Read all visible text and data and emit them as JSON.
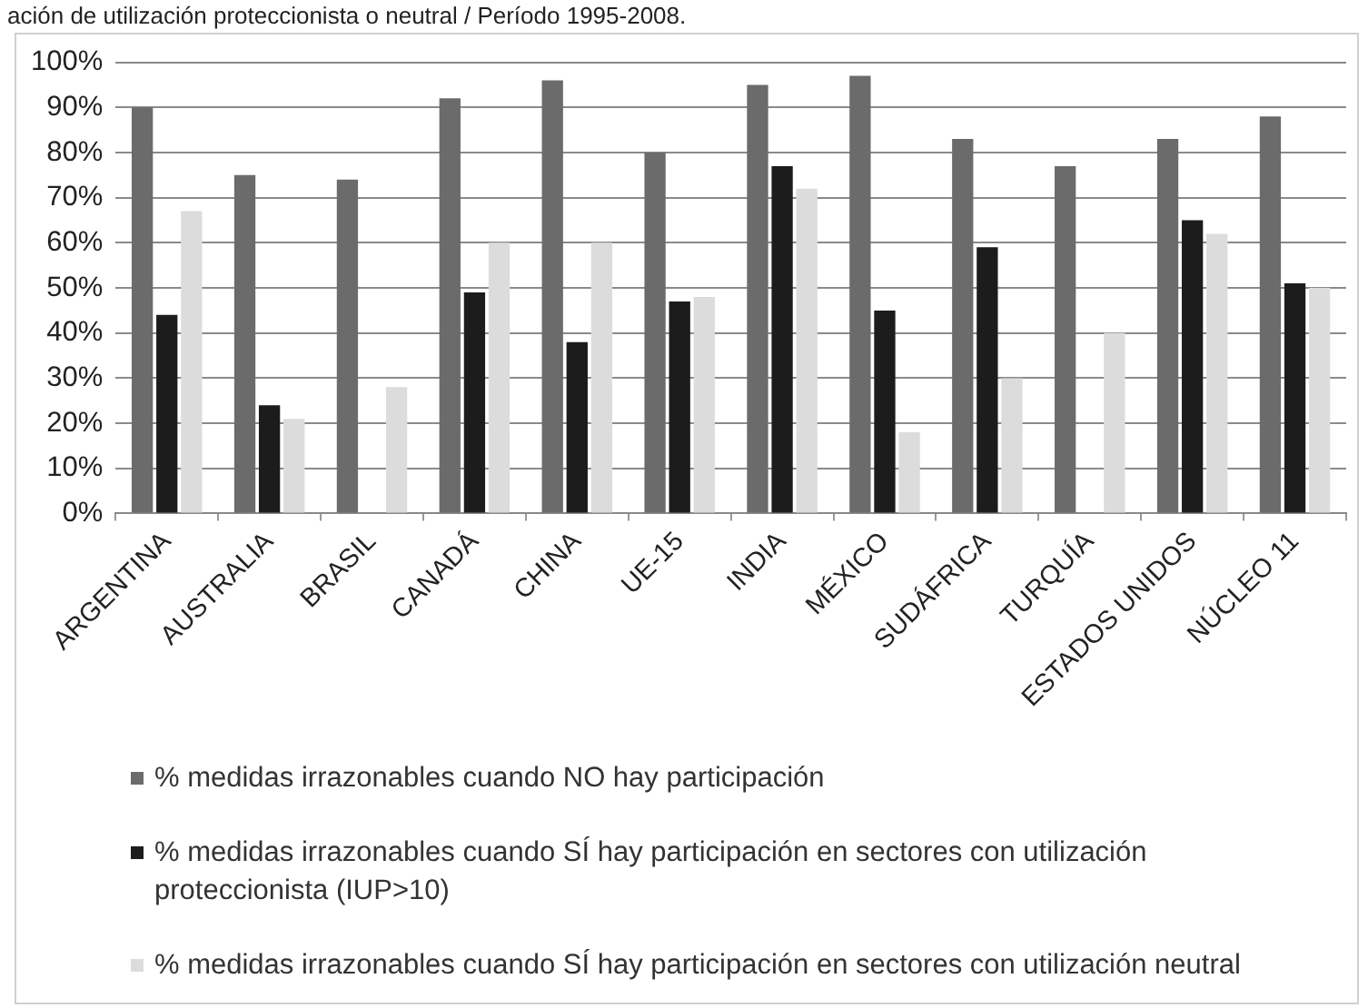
{
  "chart_data": {
    "type": "bar",
    "title": "ación de utilización proteccionista o neutral / Período 1995-2008.",
    "categories": [
      "ARGENTINA",
      "AUSTRALIA",
      "BRASIL",
      "CANADÁ",
      "CHINA",
      "UE-15",
      "INDIA",
      "MÉXICO",
      "SUDÁFRICA",
      "TURQUÍA",
      "ESTADOS UNIDOS",
      "NÚCLEO 11"
    ],
    "series": [
      {
        "name": "% medidas irrazonables cuando NO hay participación",
        "color": "#6b6b6b",
        "values": [
          90,
          75,
          74,
          92,
          96,
          80,
          95,
          97,
          83,
          77,
          83,
          88
        ]
      },
      {
        "name": "% medidas irrazonables cuando SÍ hay participación en sectores con utilización proteccionista (IUP>10)",
        "color": "#1c1c1c",
        "values": [
          44,
          24,
          null,
          49,
          38,
          47,
          77,
          45,
          59,
          null,
          65,
          51
        ]
      },
      {
        "name": "% medidas irrazonables cuando SÍ hay participación en sectores con utilización neutral",
        "color": "#dcdcdc",
        "values": [
          67,
          21,
          28,
          60,
          60,
          48,
          72,
          18,
          30,
          40,
          62,
          50
        ]
      }
    ],
    "ylim": [
      0,
      100
    ],
    "yticks": [
      {
        "value": 0,
        "label": "0%"
      },
      {
        "value": 10,
        "label": "10%"
      },
      {
        "value": 20,
        "label": "20%"
      },
      {
        "value": 30,
        "label": "30%"
      },
      {
        "value": 40,
        "label": "40%"
      },
      {
        "value": 50,
        "label": "50%"
      },
      {
        "value": 60,
        "label": "60%"
      },
      {
        "value": 70,
        "label": "70%"
      },
      {
        "value": 80,
        "label": "80%"
      },
      {
        "value": 90,
        "label": "90%"
      },
      {
        "value": 100,
        "label": "100%"
      }
    ],
    "grid": "y",
    "legend": "bottom"
  }
}
